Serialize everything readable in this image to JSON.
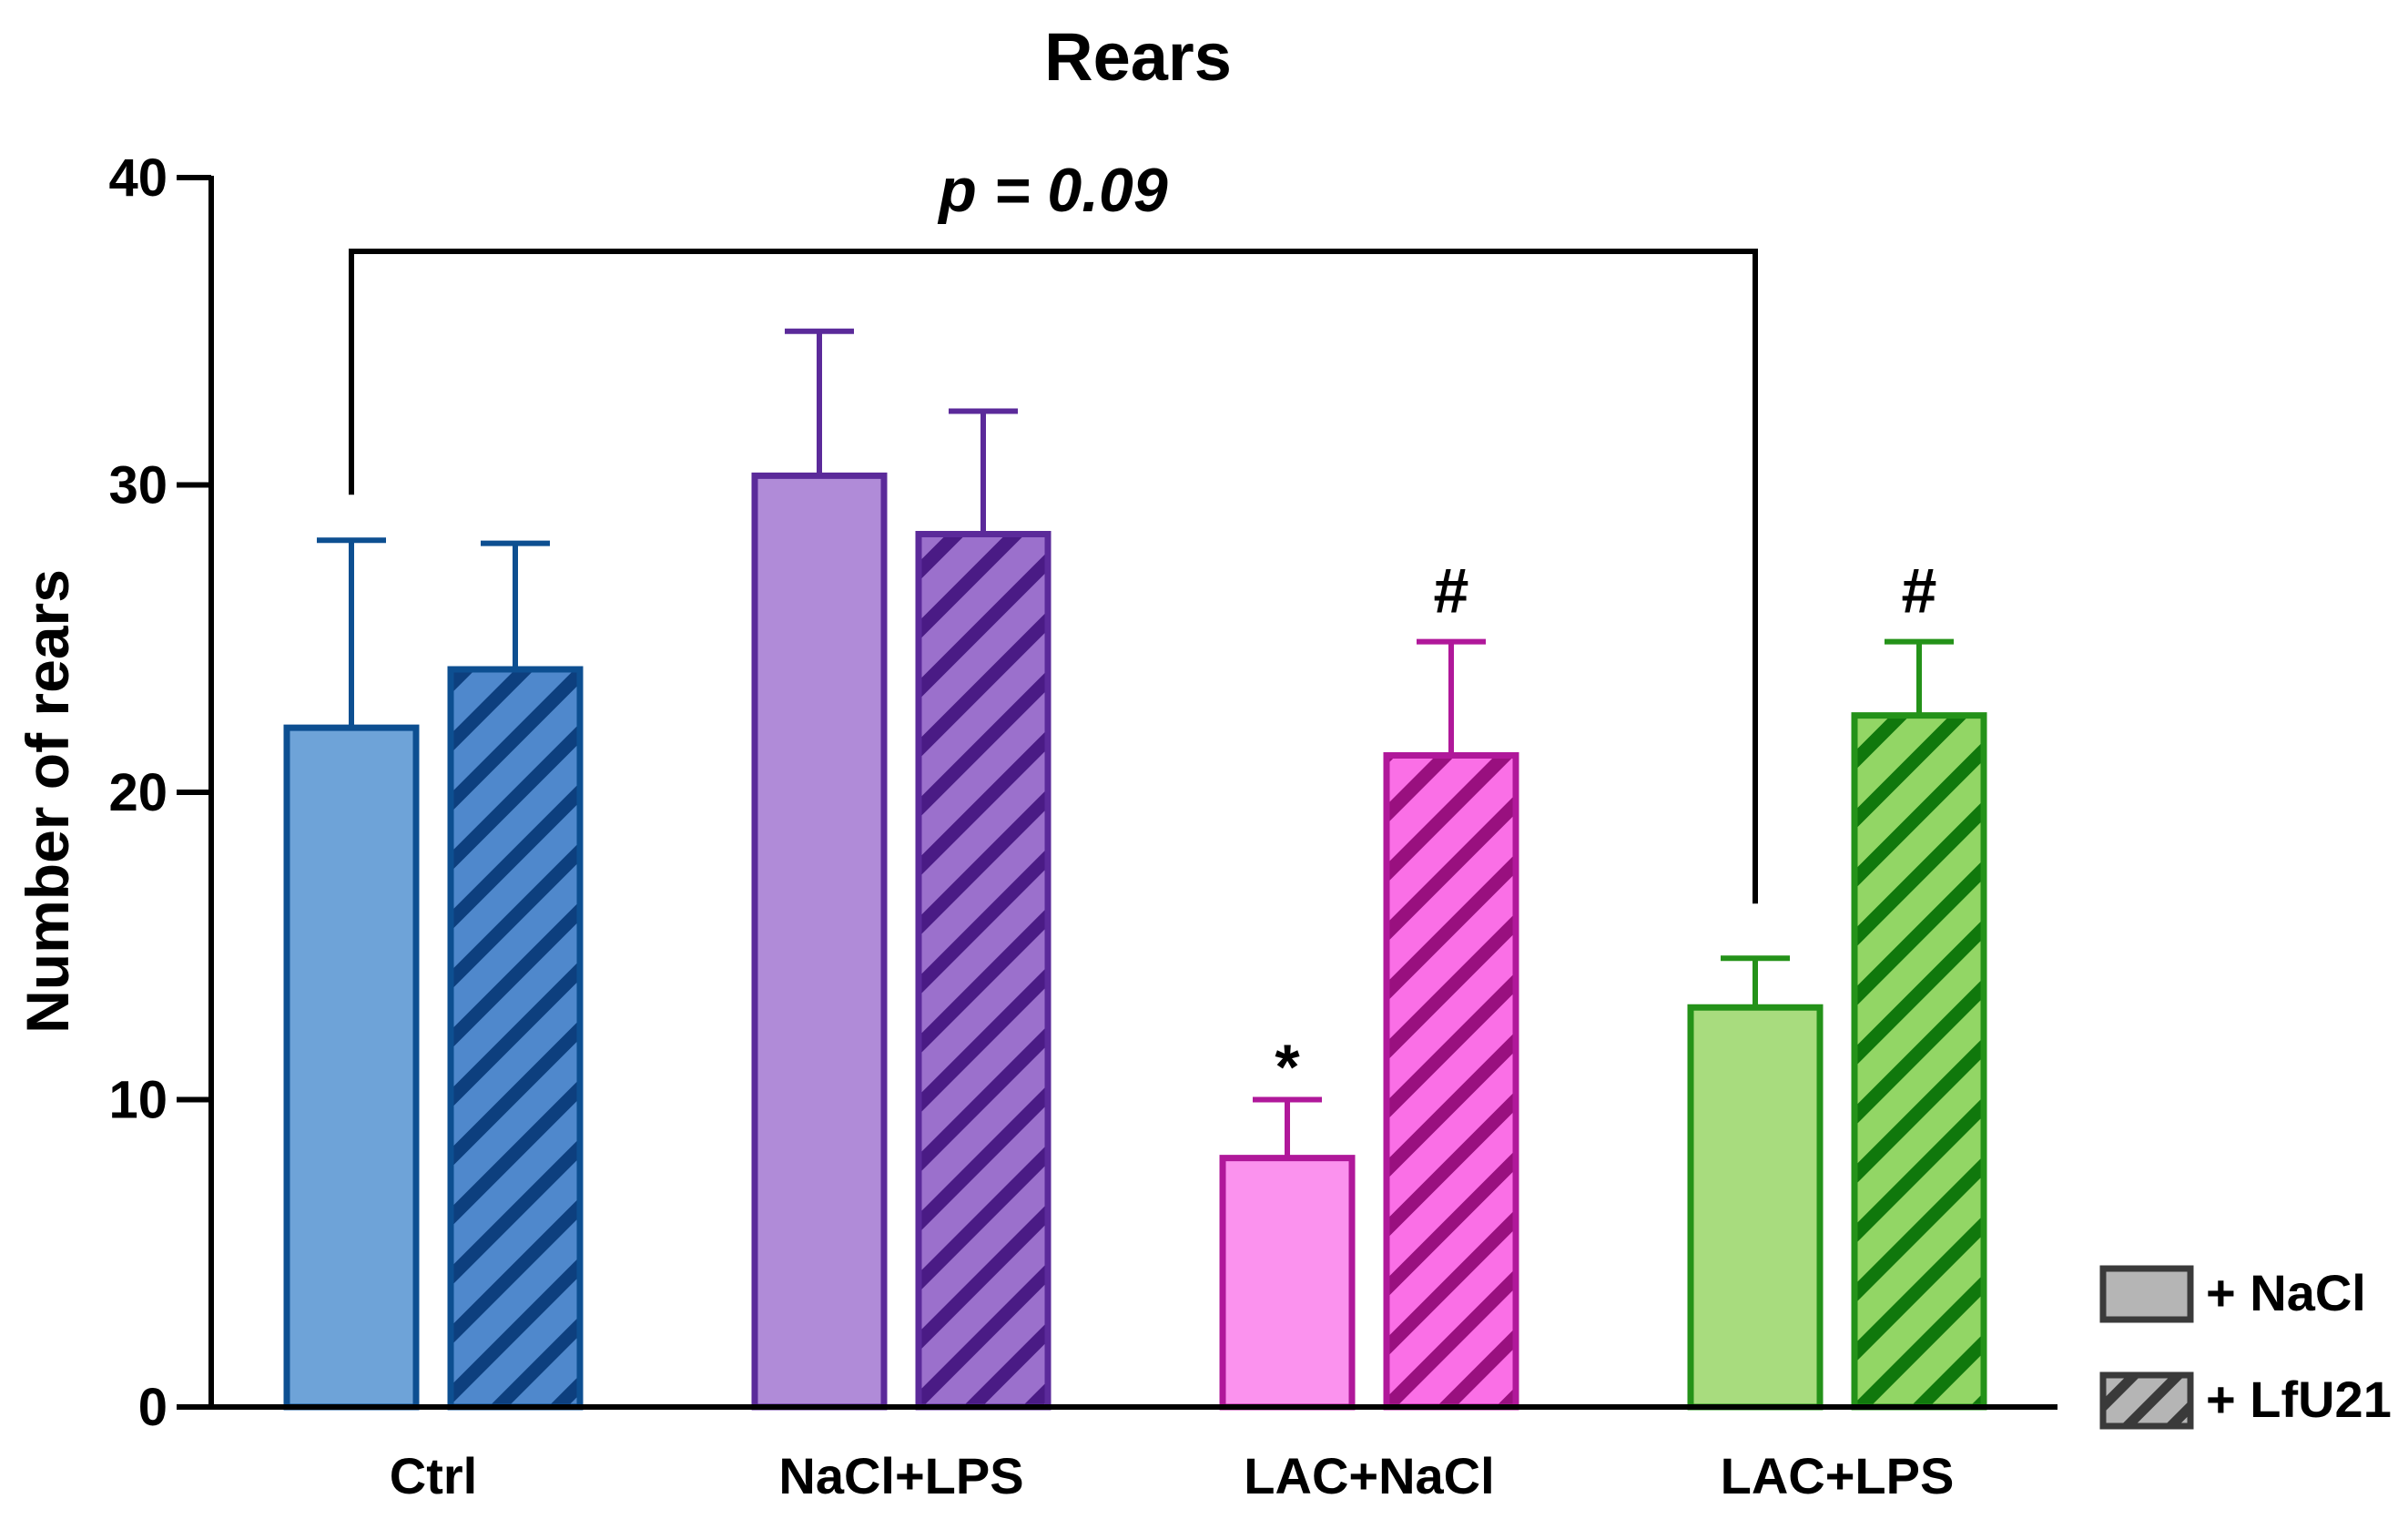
{
  "chart_data": {
    "type": "bar",
    "title": "Rears",
    "ylabel": "Number of rears",
    "xlabel": "",
    "ylim": [
      0,
      40
    ],
    "yticks": [
      0,
      10,
      20,
      30,
      40
    ],
    "categories": [
      "Ctrl",
      "NaCl+LPS",
      "LAC+NaCl",
      "LAC+LPS"
    ],
    "series": [
      {
        "name": "+ NaCl",
        "pattern": "solid",
        "values": [
          22.1,
          30.3,
          8.1,
          13.0
        ],
        "errors": [
          6.1,
          4.7,
          1.9,
          1.6
        ],
        "annotations": [
          "",
          "",
          "*",
          ""
        ]
      },
      {
        "name": "+ LfU21",
        "pattern": "hatched",
        "values": [
          24.0,
          28.4,
          21.2,
          22.5
        ],
        "errors": [
          4.1,
          4.0,
          3.7,
          2.4
        ],
        "annotations": [
          "",
          "",
          "#",
          "#"
        ]
      }
    ],
    "group_colors": [
      {
        "fill": "#6ea3d8",
        "fill_hatched": "#4f88cc",
        "stroke": "#0d4f91",
        "hatch": "#0d3f7e"
      },
      {
        "fill": "#b08bd8",
        "fill_hatched": "#9b70cc",
        "stroke": "#5b2a9a",
        "hatch": "#4a1b85"
      },
      {
        "fill": "#fb92ee",
        "fill_hatched": "#fa6fe6",
        "stroke": "#b0189a",
        "hatch": "#99107f"
      },
      {
        "fill": "#a8dc7e",
        "fill_hatched": "#92d665",
        "stroke": "#249219",
        "hatch": "#10780c"
      }
    ],
    "comparison": {
      "from": "Ctrl",
      "to": "LAC+LPS",
      "label": "p = 0.09"
    },
    "legend": {
      "placement": "bottom-right",
      "entries": [
        {
          "label": "+ NaCl",
          "pattern": "solid",
          "color": "#b5b5b5"
        },
        {
          "label": "+ LfU21",
          "pattern": "hatched",
          "color": "#b5b5b5"
        }
      ]
    },
    "grid": false
  }
}
